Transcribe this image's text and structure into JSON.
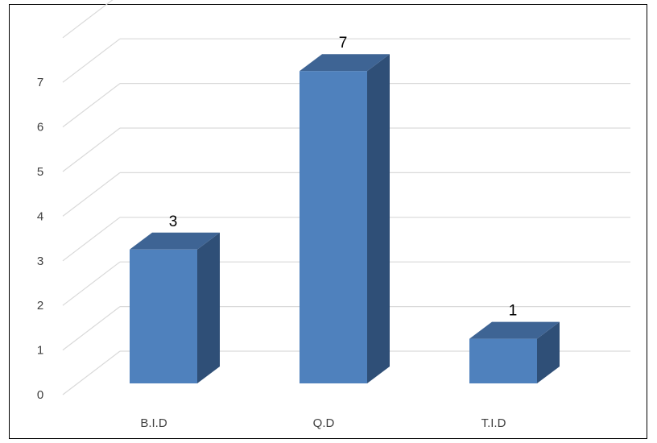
{
  "chart_data": {
    "type": "bar",
    "categories": [
      "B.I.D",
      "Q.D",
      "T.I.D"
    ],
    "values": [
      3,
      7,
      1
    ],
    "data_labels": [
      "3",
      "7",
      "1"
    ],
    "ylim": [
      0,
      7
    ],
    "yticks": [
      "0",
      "1",
      "2",
      "3",
      "4",
      "5",
      "6",
      "7"
    ],
    "grid": true,
    "legend": "none",
    "colors": {
      "bar_front": "#4F81BD",
      "bar_top": "#3E6494",
      "bar_side": "#2F4F77",
      "grid": "#D9D9D9"
    }
  }
}
